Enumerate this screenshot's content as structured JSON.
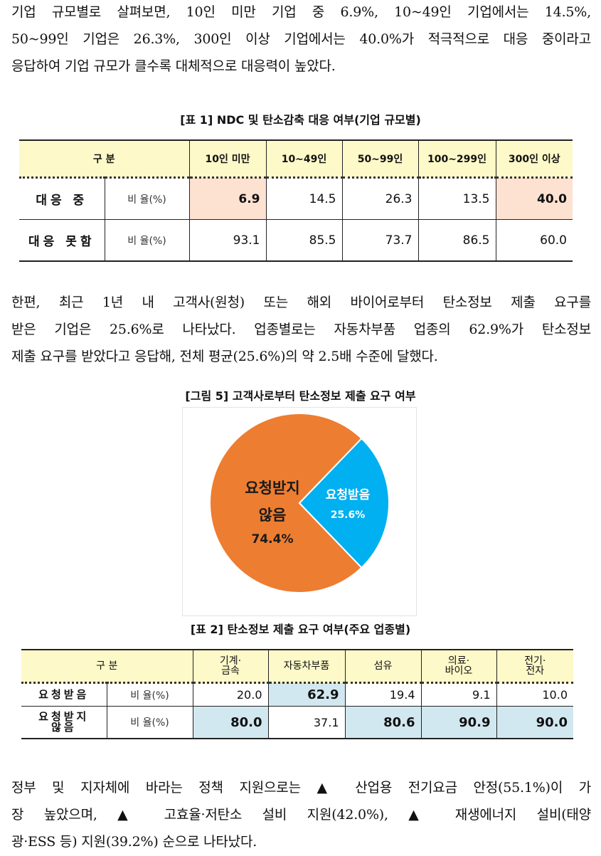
{
  "paragraph1": [
    "기업 규모별로 살펴보면, 10인 미만 기업 중 6.9%, 10~49인 기업에서는 14.5%,",
    "50~99인 기업은 26.3%, 300인 이상 기업에서는 40.0%가 적극적으로 대응 중이라고",
    "응답하여 기업 규모가 클수록 대체적으로 대응력이 높았다."
  ],
  "table1": {
    "caption": "[표 1] NDC 및 탄소감축 대응 여부(기업 규모별)",
    "header_label": "구  분",
    "columns": [
      "10인 미만",
      "10~49인",
      "50~99인",
      "100~299인",
      "300인 이상"
    ],
    "rows": [
      {
        "label": "대응 중",
        "sub": "비 율(%)",
        "values": [
          "6.9",
          "14.5",
          "26.3",
          "13.5",
          "40.0"
        ],
        "highlight": [
          true,
          false,
          false,
          false,
          true
        ]
      },
      {
        "label": "대응 못함",
        "sub": "비 율(%)",
        "values": [
          "93.1",
          "85.5",
          "73.7",
          "86.5",
          "60.0"
        ],
        "highlight": [
          false,
          false,
          false,
          false,
          false
        ]
      }
    ],
    "highlight_color": "#fde2d2"
  },
  "paragraph2": [
    "한편, 최근 1년 내 고객사(원청) 또는 해외 바이어로부터 탄소정보 제출 요구를",
    "받은 기업은 25.6%로 나타났다. 업종별로는 자동차부품 업종의 62.9%가 탄소정보",
    "제출 요구를 받았다고 응답해, 전체 평균(25.6%)의 약 2.5배 수준에 달했다."
  ],
  "figure5": {
    "caption": "[그림 5] 고객사로부터 탄소정보 제출 요구 여부"
  },
  "chart_data": {
    "type": "pie",
    "title": "",
    "slices": [
      {
        "label_line1": "요청받지",
        "label_line2": "않음",
        "value": 74.4,
        "value_label": "74.4%",
        "color": "#ed7d31"
      },
      {
        "label_line1": "요청받음",
        "label_line2": "",
        "value": 25.6,
        "value_label": "25.6%",
        "color": "#00b0f0"
      }
    ]
  },
  "table2": {
    "caption": "[표 2] 탄소정보 제출 요구 여부(주요 업종별)",
    "header_label": "구  분",
    "columns": [
      {
        "line1": "기계·",
        "line2": "금속"
      },
      {
        "line1": "자동차부품",
        "line2": ""
      },
      {
        "line1": "섬유",
        "line2": ""
      },
      {
        "line1": "의료·",
        "line2": "바이오"
      },
      {
        "line1": "전기·",
        "line2": "전자"
      }
    ],
    "rows": [
      {
        "label_line1": "요청받음",
        "label_line2": "",
        "sub": "비 율(%)",
        "values": [
          "20.0",
          "62.9",
          "19.4",
          "9.1",
          "10.0"
        ],
        "highlight": [
          false,
          true,
          false,
          false,
          false
        ]
      },
      {
        "label_line1": "요청받지",
        "label_line2": "않음",
        "sub": "비 율(%)",
        "values": [
          "80.0",
          "37.1",
          "80.6",
          "90.9",
          "90.0"
        ],
        "highlight": [
          true,
          false,
          true,
          true,
          true
        ]
      }
    ],
    "highlight_color": "#d2e8f0"
  },
  "paragraph3": [
    "정부 및 지자체에 바라는 정책 지원으로는 ▲ 산업용 전기요금 안정(55.1%)이 가",
    "장 높았으며, ▲ 고효율·저탄소 설비 지원(42.0%), ▲ 재생에너지 설비(태양",
    "광·ESS 등) 지원(39.2%) 순으로 나타났다."
  ]
}
